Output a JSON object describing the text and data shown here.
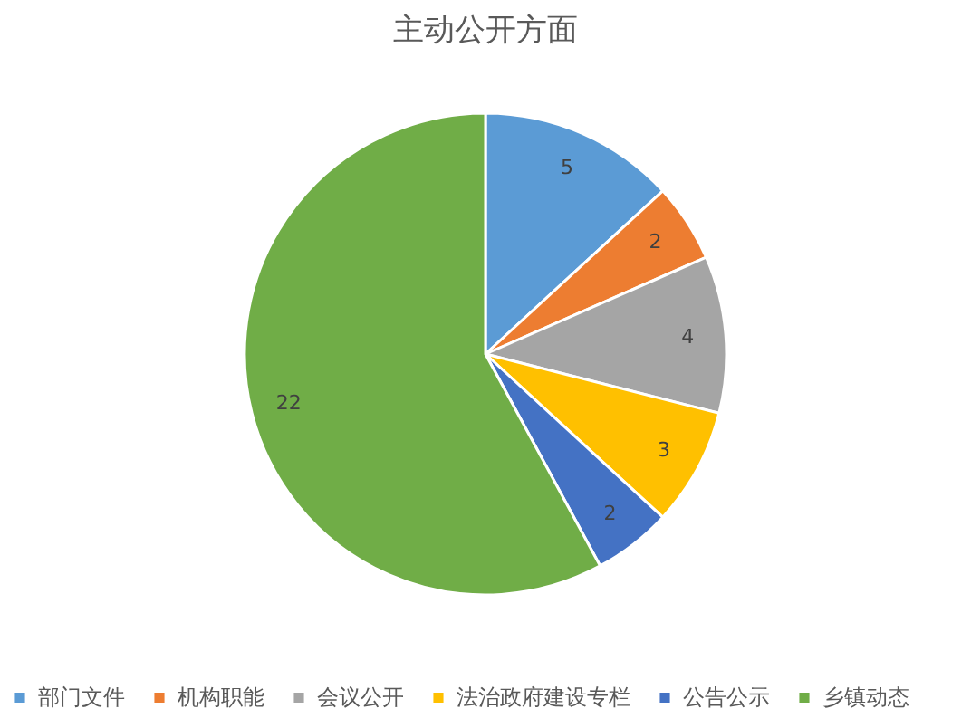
{
  "chart_data": {
    "type": "pie",
    "title": "主动公开方面",
    "categories": [
      "部门文件",
      "机构职能",
      "会议公开",
      "法治政府建设专栏",
      "公告公示",
      "乡镇动态"
    ],
    "values": [
      5,
      2,
      4,
      3,
      2,
      22
    ],
    "colors": [
      "#5b9bd5",
      "#ed7d31",
      "#a5a5a5",
      "#ffc000",
      "#4472c4",
      "#70ad47"
    ],
    "data_labels": true,
    "legend": "bottom"
  }
}
